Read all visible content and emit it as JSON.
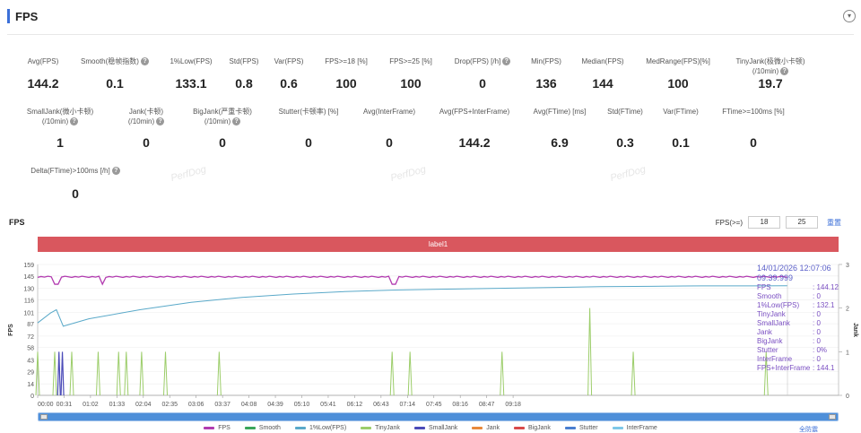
{
  "header": {
    "title": "FPS",
    "collapse_icon": "chevron-down-icon"
  },
  "metrics_row1": [
    {
      "label": "Avg(FPS)",
      "value": "144.2",
      "help": false
    },
    {
      "label": "Smooth(稳帧指数)",
      "value": "0.1",
      "help": true
    },
    {
      "label": "1%Low(FPS)",
      "value": "133.1",
      "help": false
    },
    {
      "label": "Std(FPS)",
      "value": "0.8",
      "help": false
    },
    {
      "label": "Var(FPS)",
      "value": "0.6",
      "help": false
    },
    {
      "label": "FPS>=18 [%]",
      "value": "100",
      "help": false
    },
    {
      "label": "FPS>=25 [%]",
      "value": "100",
      "help": false
    },
    {
      "label": "Drop(FPS) [/h]",
      "value": "0",
      "help": true
    },
    {
      "label": "Min(FPS)",
      "value": "136",
      "help": false
    },
    {
      "label": "Median(FPS)",
      "value": "144",
      "help": false
    },
    {
      "label": "MedRange(FPS)[%]",
      "value": "100",
      "help": false
    },
    {
      "label": "TinyJank(极微小卡顿)",
      "label2": "(/10min)",
      "value": "19.7",
      "help": true
    }
  ],
  "metrics_row2": [
    {
      "label": "SmallJank(微小卡顿)",
      "label2": "(/10min)",
      "value": "1",
      "help": true
    },
    {
      "label": "Jank(卡顿)",
      "label2": "(/10min)",
      "value": "0",
      "help": true
    },
    {
      "label": "BigJank(严重卡顿)",
      "label2": "(/10min)",
      "value": "0",
      "help": true
    },
    {
      "label": "Stutter(卡顿率) [%]",
      "value": "0",
      "help": false
    },
    {
      "label": "Avg(InterFrame)",
      "value": "0",
      "help": false
    },
    {
      "label": "Avg(FPS+InterFrame)",
      "value": "144.2",
      "help": false
    },
    {
      "label": "Avg(FTime) [ms]",
      "value": "6.9",
      "help": false
    },
    {
      "label": "Std(FTime)",
      "value": "0.3",
      "help": false
    },
    {
      "label": "Var(FTime)",
      "value": "0.1",
      "help": false
    },
    {
      "label": "FTime>=100ms [%]",
      "value": "0",
      "help": false
    }
  ],
  "metrics_row3": [
    {
      "label": "Delta(FTime)>100ms [/h]",
      "value": "0",
      "help": true
    }
  ],
  "watermark": "PerfDog",
  "chart_section": {
    "title": "FPS",
    "filter_label": "FPS(>=)",
    "filter_values": [
      "18",
      "25"
    ],
    "settings_label": "重置",
    "band_label": "label1",
    "fullscreen_label": "全防震"
  },
  "tooltip": {
    "timestamp": "14/01/2026 12:07:06",
    "timestamp2": "09:39.999",
    "rows": [
      {
        "k": "FPS",
        "v": ": 144.12"
      },
      {
        "k": "Smooth",
        "v": ": 0"
      },
      {
        "k": "1%Low(FPS)",
        "v": ": 132.1"
      },
      {
        "k": "TinyJank",
        "v": ": 0"
      },
      {
        "k": "SmallJank",
        "v": ": 0"
      },
      {
        "k": "Jank",
        "v": ": 0"
      },
      {
        "k": "BigJank",
        "v": ": 0"
      },
      {
        "k": "Stutter",
        "v": ": 0%"
      },
      {
        "k": "InterFrame",
        "v": ": 0"
      },
      {
        "k": "FPS+InterFrame",
        "v": ": 144.1"
      }
    ]
  },
  "chart_data": {
    "type": "line",
    "ylabel": "FPS",
    "y2label": "Jank",
    "ylim": [
      0,
      159
    ],
    "y_ticks": [
      "159",
      "145",
      "130",
      "116",
      "101",
      "87",
      "72",
      "58",
      "43",
      "29",
      "14",
      "0"
    ],
    "y2lim": [
      0,
      3
    ],
    "y2_ticks": [
      "3",
      "2",
      "1",
      "0"
    ],
    "x_ticks": [
      "00:00",
      "00:31",
      "01:02",
      "01:33",
      "02:04",
      "02:35",
      "03:06",
      "03:37",
      "04:08",
      "04:39",
      "05:10",
      "05:41",
      "06:12",
      "06:43",
      "07:14",
      "07:45",
      "08:16",
      "08:47",
      "09:18"
    ],
    "colors": {
      "FPS": "#b23cb0",
      "Smooth": "#3aa65a",
      "1%Low(FPS)": "#5aa9c9",
      "TinyJank": "#9ccd6a",
      "SmallJank": "#4b4bb8",
      "Jank": "#e8893b",
      "BigJank": "#d94a4a",
      "Stutter": "#4a7fd0",
      "InterFrame": "#7ec8e8"
    },
    "series": [
      {
        "name": "FPS",
        "approx_value": 144,
        "dips_at_seconds": [
          22,
          76,
          415,
          420
        ]
      },
      {
        "name": "1%Low(FPS)",
        "points": [
          [
            0,
            88
          ],
          [
            15,
            100
          ],
          [
            22,
            104
          ],
          [
            30,
            84
          ],
          [
            60,
            93
          ],
          [
            120,
            104
          ],
          [
            180,
            113
          ],
          [
            240,
            119
          ],
          [
            300,
            123
          ],
          [
            360,
            126
          ],
          [
            420,
            128
          ],
          [
            480,
            129
          ],
          [
            540,
            130
          ],
          [
            600,
            131
          ],
          [
            660,
            132
          ],
          [
            720,
            132.5
          ],
          [
            780,
            133
          ],
          [
            840,
            133
          ],
          [
            880,
            133.1
          ]
        ]
      },
      {
        "name": "TinyJank",
        "spikes_seconds": [
          0,
          20,
          40,
          71,
          95,
          104,
          122,
          150,
          213,
          416,
          437,
          545,
          648,
          699,
          855
        ],
        "spike_values": [
          1,
          1,
          1,
          1,
          1,
          1,
          1,
          1,
          1,
          1,
          1,
          1,
          2,
          1,
          1
        ]
      },
      {
        "name": "SmallJank",
        "spikes_seconds": [
          25,
          29
        ],
        "spike_values": [
          1,
          1
        ]
      }
    ],
    "x_range_seconds": [
      0,
      940
    ]
  },
  "legend": [
    "FPS",
    "Smooth",
    "1%Low(FPS)",
    "TinyJank",
    "SmallJank",
    "Jank",
    "BigJank",
    "Stutter",
    "InterFrame"
  ]
}
